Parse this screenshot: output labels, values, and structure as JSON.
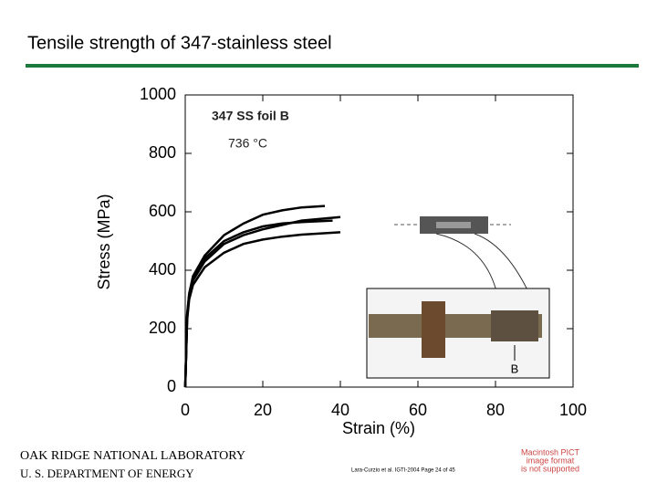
{
  "title": "Tensile strength of 347-stainless steel",
  "chart_data": {
    "type": "line",
    "x_label": "Strain (%)",
    "y_label": "Stress (MPa)",
    "annotations": [
      "347 SS foil B",
      "736 °C",
      "B"
    ],
    "xlim": [
      0,
      100
    ],
    "xticks": [
      0,
      20,
      40,
      60,
      80,
      100
    ],
    "ylim": [
      0,
      1000
    ],
    "yticks": [
      0,
      200,
      400,
      600,
      800,
      1000
    ],
    "grid": false,
    "series": [
      {
        "color": "#000000",
        "x": [
          0,
          0.5,
          1,
          2,
          5,
          10,
          15,
          20,
          25,
          30,
          36
        ],
        "values": [
          0,
          250,
          320,
          380,
          450,
          520,
          560,
          590,
          605,
          615,
          620
        ]
      },
      {
        "color": "#000000",
        "x": [
          0,
          0.5,
          1,
          2,
          5,
          10,
          15,
          20,
          25,
          30,
          38
        ],
        "values": [
          0,
          245,
          315,
          370,
          440,
          500,
          530,
          550,
          560,
          565,
          570
        ]
      },
      {
        "color": "#000000",
        "x": [
          0,
          0.5,
          1,
          2,
          5,
          10,
          15,
          20,
          25,
          30,
          40
        ],
        "values": [
          0,
          240,
          310,
          365,
          430,
          490,
          520,
          540,
          555,
          570,
          582
        ]
      },
      {
        "color": "#000000",
        "x": [
          0,
          0.5,
          1,
          2,
          5,
          10,
          15,
          20,
          25,
          30,
          40
        ],
        "values": [
          0,
          230,
          300,
          350,
          410,
          460,
          490,
          505,
          515,
          522,
          530
        ]
      }
    ]
  },
  "footer": {
    "lab": "OAK RIDGE NATIONAL LABORATORY",
    "dept": "U. S. DEPARTMENT OF ENERGY",
    "citation": "Lara-Curzio et al. IGTI-2004  Page 24 of 45",
    "pict": [
      "Macintosh PICT",
      "image format",
      "is not supported"
    ]
  }
}
